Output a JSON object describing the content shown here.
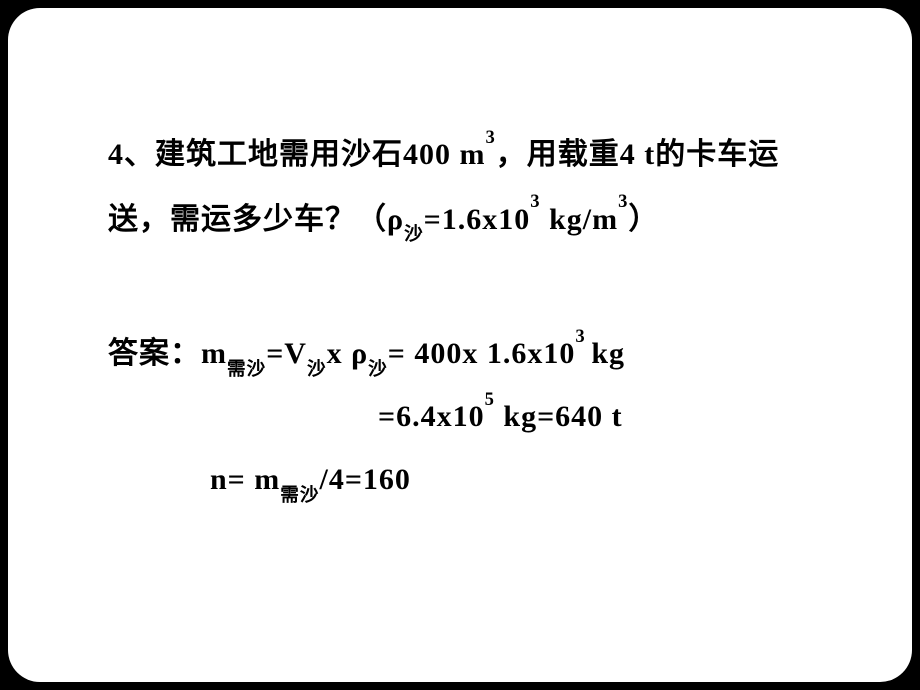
{
  "slide": {
    "background_color": "#ffffff",
    "outer_background": "#000000",
    "corner_radius": 32,
    "text_color": "#000000",
    "font_family": "SimSun",
    "font_size_pt": 30,
    "font_weight": "bold",
    "line_height": 2.1
  },
  "question": {
    "number": "4",
    "text_prefix": "、建筑工地需用沙石400 m",
    "exp1": "3",
    "text_mid1": "，用载重4 t的卡车运送，需运多少车？（ρ",
    "sub1": "沙",
    "text_mid2": "=1.6x10",
    "exp2": "3",
    "space1": " ",
    "text_mid3": "kg/m",
    "exp3": "3",
    "text_end": "）"
  },
  "answer": {
    "label": "答案：",
    "line1": {
      "p1": "m",
      "s1": "需沙",
      "p2": "=V",
      "s2": "沙",
      "p3": "x ρ",
      "s3": "沙",
      "p4": "= 400x 1.6x10",
      "e1": "3 ",
      "p5": "kg"
    },
    "line2": {
      "p1": "=6.4x10",
      "e1": "5",
      "p2": " kg=640 t"
    },
    "line3": {
      "p1": "n= m",
      "s1": "需沙",
      "p2": "/4=160"
    }
  }
}
